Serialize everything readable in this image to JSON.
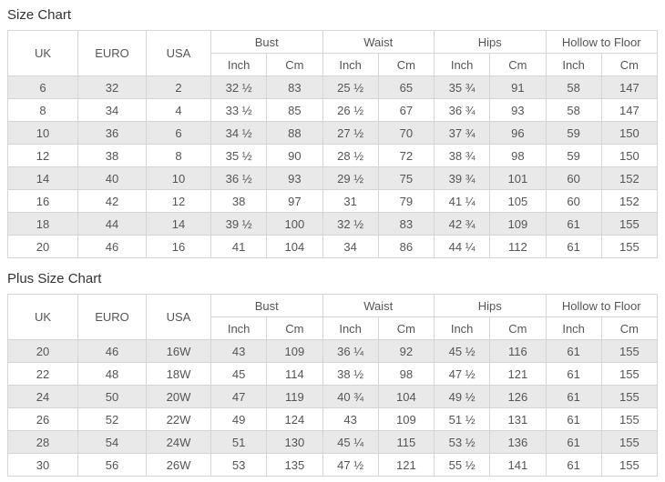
{
  "colors": {
    "background": "#ffffff",
    "row_stripe": "#e9e9e9",
    "table_border": "#d5d5d5",
    "cell_text": "#555555",
    "title_text": "#333333"
  },
  "chart_data": [
    {
      "type": "table",
      "title": "Size Chart",
      "group_headers": [
        {
          "label": "UK",
          "rowspan": 2
        },
        {
          "label": "EURO",
          "rowspan": 2
        },
        {
          "label": "USA",
          "rowspan": 2
        },
        {
          "label": "Bust",
          "colspan": 2
        },
        {
          "label": "Waist",
          "colspan": 2
        },
        {
          "label": "Hips",
          "colspan": 2
        },
        {
          "label": "Hollow to Floor",
          "colspan": 2
        }
      ],
      "sub_headers": [
        "Inch",
        "Cm",
        "Inch",
        "Cm",
        "Inch",
        "Cm",
        "Inch",
        "Cm"
      ],
      "rows": [
        [
          "6",
          "32",
          "2",
          "32 ½",
          "83",
          "25 ½",
          "65",
          "35 ¾",
          "91",
          "58",
          "147"
        ],
        [
          "8",
          "34",
          "4",
          "33 ½",
          "85",
          "26 ½",
          "67",
          "36 ¾",
          "93",
          "58",
          "147"
        ],
        [
          "10",
          "36",
          "6",
          "34 ½",
          "88",
          "27 ½",
          "70",
          "37 ¾",
          "96",
          "59",
          "150"
        ],
        [
          "12",
          "38",
          "8",
          "35 ½",
          "90",
          "28 ½",
          "72",
          "38 ¾",
          "98",
          "59",
          "150"
        ],
        [
          "14",
          "40",
          "10",
          "36 ½",
          "93",
          "29 ½",
          "75",
          "39 ¾",
          "101",
          "60",
          "152"
        ],
        [
          "16",
          "42",
          "12",
          "38",
          "97",
          "31",
          "79",
          "41 ¼",
          "105",
          "60",
          "152"
        ],
        [
          "18",
          "44",
          "14",
          "39 ½",
          "100",
          "32 ½",
          "83",
          "42 ¾",
          "109",
          "61",
          "155"
        ],
        [
          "20",
          "46",
          "16",
          "41",
          "104",
          "34",
          "86",
          "44 ¼",
          "112",
          "61",
          "155"
        ]
      ]
    },
    {
      "type": "table",
      "title": "Plus Size Chart",
      "group_headers": [
        {
          "label": "UK",
          "rowspan": 2
        },
        {
          "label": "EURO",
          "rowspan": 2
        },
        {
          "label": "USA",
          "rowspan": 2
        },
        {
          "label": "Bust",
          "colspan": 2
        },
        {
          "label": "Waist",
          "colspan": 2
        },
        {
          "label": "Hips",
          "colspan": 2
        },
        {
          "label": "Hollow to Floor",
          "colspan": 2
        }
      ],
      "sub_headers": [
        "Inch",
        "Cm",
        "Inch",
        "Cm",
        "Inch",
        "Cm",
        "Inch",
        "Cm"
      ],
      "rows": [
        [
          "20",
          "46",
          "16W",
          "43",
          "109",
          "36 ¼",
          "92",
          "45 ½",
          "116",
          "61",
          "155"
        ],
        [
          "22",
          "48",
          "18W",
          "45",
          "114",
          "38 ½",
          "98",
          "47 ½",
          "121",
          "61",
          "155"
        ],
        [
          "24",
          "50",
          "20W",
          "47",
          "119",
          "40 ¾",
          "104",
          "49 ½",
          "126",
          "61",
          "155"
        ],
        [
          "26",
          "52",
          "22W",
          "49",
          "124",
          "43",
          "109",
          "51 ½",
          "131",
          "61",
          "155"
        ],
        [
          "28",
          "54",
          "24W",
          "51",
          "130",
          "45 ¼",
          "115",
          "53 ½",
          "136",
          "61",
          "155"
        ],
        [
          "30",
          "56",
          "26W",
          "53",
          "135",
          "47 ½",
          "121",
          "55 ½",
          "141",
          "61",
          "155"
        ]
      ]
    }
  ]
}
